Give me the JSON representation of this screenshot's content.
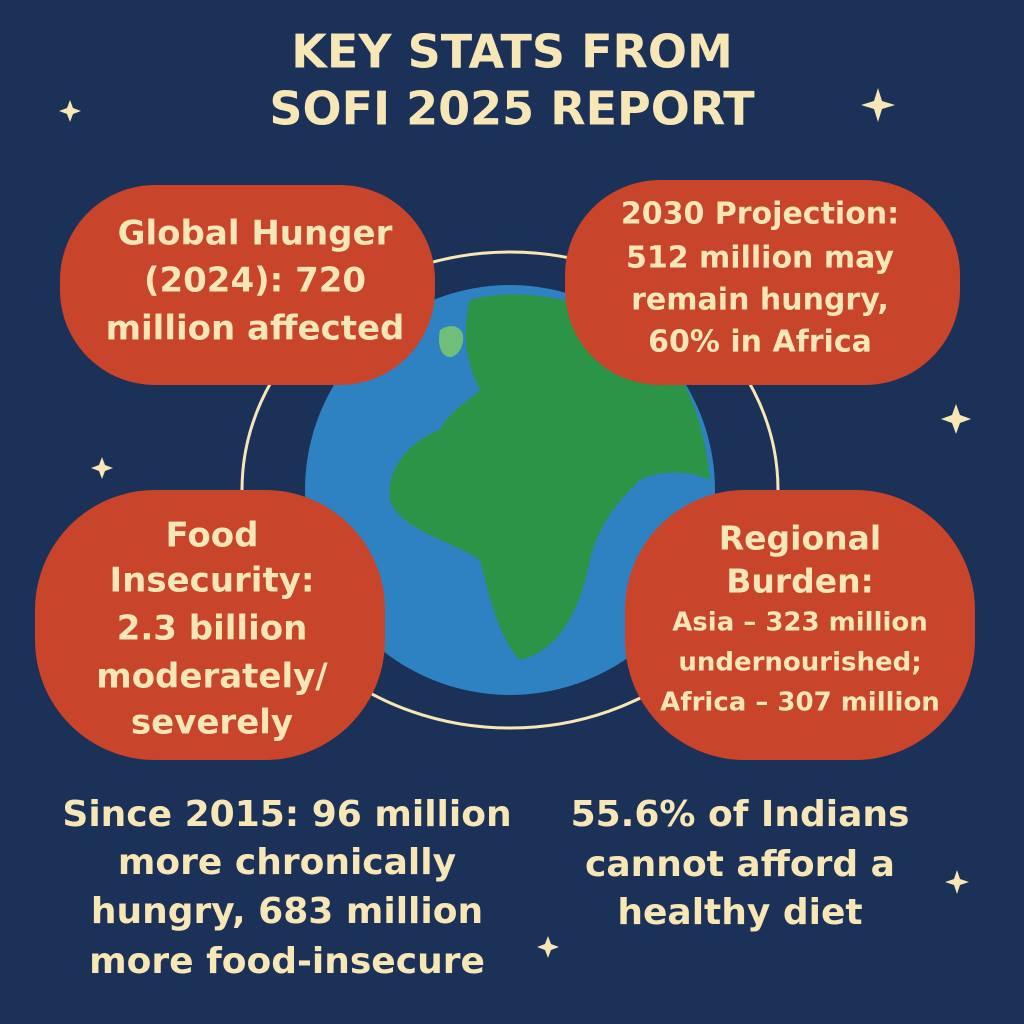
{
  "header": {
    "title_lines": [
      "KEY STATS FROM",
      "SOFI 2025 REPORT"
    ]
  },
  "bubbles": [
    {
      "lines": [
        "Global Hunger",
        "(2024): 720",
        "million affected"
      ]
    },
    {
      "lines": [
        "2030 Projection:",
        "512 million may",
        "remain hungry,",
        "60% in Africa"
      ]
    },
    {
      "lines": [
        "Food",
        "Insecurity:",
        "2.3 billion",
        "moderately/",
        "severely"
      ]
    },
    {
      "lines": [
        "Regional",
        "Burden:",
        "Asia – 323 million",
        "undernourished;",
        "Africa – 307 million"
      ]
    }
  ],
  "notes": [
    {
      "lines": [
        "Since 2015: 96 million",
        "more chronically",
        "hungry, 683 million",
        "more food-insecure"
      ]
    },
    {
      "lines": [
        "55.6% of Indians",
        "cannot afford a",
        "healthy diet"
      ]
    }
  ]
}
